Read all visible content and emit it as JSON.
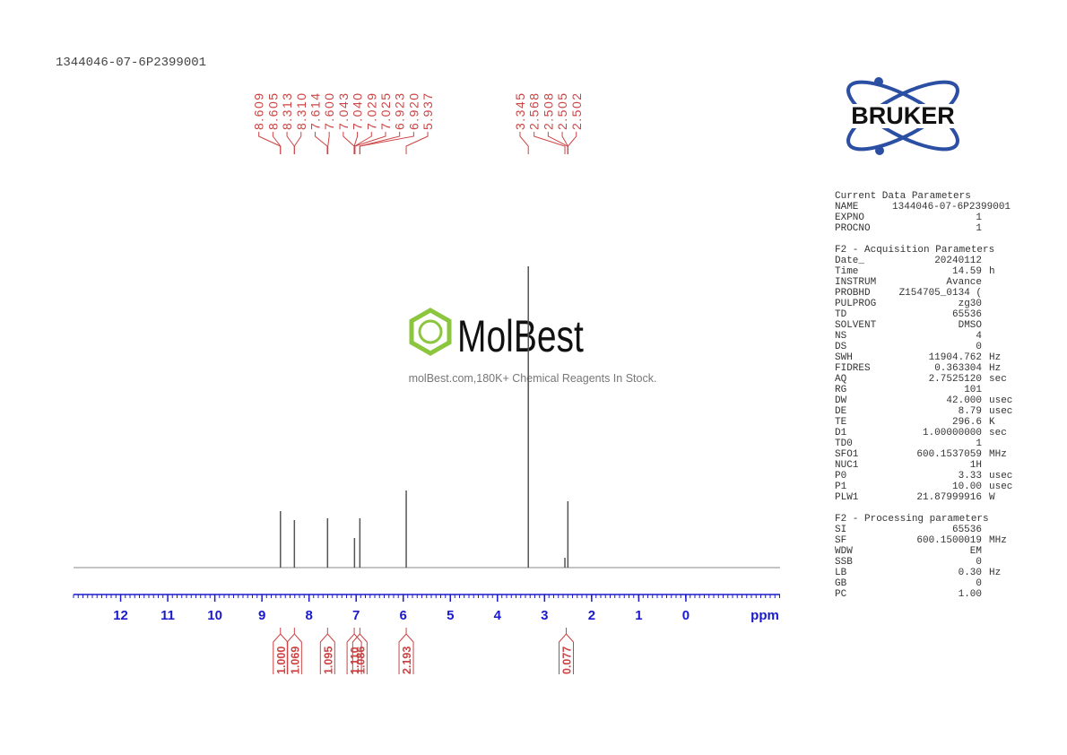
{
  "header": {
    "sample": "1344046-07-6P2399001"
  },
  "logo": {
    "text": "BRUKER"
  },
  "watermark": {
    "brand": "MolBest",
    "tagline": "molBest.com,180K+ Chemical Reagents In Stock."
  },
  "chart_data": {
    "type": "spectrum",
    "x_label": "ppm",
    "xlim": [
      13,
      -2
    ],
    "xticks": [
      12,
      11,
      10,
      9,
      8,
      7,
      6,
      5,
      4,
      3,
      2,
      1,
      0
    ],
    "ylim": [
      0,
      340
    ],
    "signals": {
      "x": [
        8.607,
        8.311,
        7.607,
        7.035,
        6.921,
        5.937,
        3.345,
        2.568,
        2.505
      ],
      "heights": [
        63,
        53,
        55,
        33,
        55,
        86,
        336,
        11,
        74
      ]
    },
    "peak_picks": {
      "values": [
        8.609,
        8.605,
        8.313,
        8.31,
        7.614,
        7.6,
        7.043,
        7.04,
        7.029,
        7.025,
        6.923,
        6.92,
        5.937,
        3.345,
        2.568,
        2.508,
        2.505,
        2.502
      ],
      "value_labels": [
        "8.609",
        "8.605",
        "8.313",
        "8.310",
        "7.614",
        "7.600",
        "7.043",
        "7.040",
        "7.029",
        "7.025",
        "6.923",
        "6.920",
        "5.937",
        "3.345",
        "2.568",
        "2.508",
        "2.505",
        "2.502"
      ]
    },
    "integrals": {
      "x": [
        8.607,
        8.311,
        7.607,
        7.04,
        6.921,
        5.937,
        2.54
      ],
      "values": [
        1,
        1.069,
        1.095,
        1.11,
        1.086,
        2.193,
        0.077
      ],
      "value_labels": [
        "1.000",
        "1.069",
        "1.095",
        "1.110",
        "1.086",
        "2.193",
        "0.077"
      ]
    }
  },
  "parameters": [
    {
      "title": "Current Data Parameters",
      "rows": [
        {
          "key": "NAME",
          "value": "1344046-07-6P2399001"
        },
        {
          "key": "EXPNO",
          "value": "1"
        },
        {
          "key": "PROCNO",
          "value": "1"
        }
      ]
    },
    {
      "title": "F2 - Acquisition Parameters",
      "rows": [
        {
          "key": "Date_",
          "value": "20240112"
        },
        {
          "key": "Time",
          "value": "14.59",
          "unit": "h"
        },
        {
          "key": "INSTRUM",
          "value": "Avance"
        },
        {
          "key": "PROBHD",
          "value": "Z154705_0134 ("
        },
        {
          "key": "PULPROG",
          "value": "zg30"
        },
        {
          "key": "TD",
          "value": "65536"
        },
        {
          "key": "SOLVENT",
          "value": "DMSO"
        },
        {
          "key": "NS",
          "value": "4"
        },
        {
          "key": "DS",
          "value": "0"
        },
        {
          "key": "SWH",
          "value": "11904.762",
          "unit": "Hz"
        },
        {
          "key": "FIDRES",
          "value": "0.363304",
          "unit": "Hz"
        },
        {
          "key": "AQ",
          "value": "2.7525120",
          "unit": "sec"
        },
        {
          "key": "RG",
          "value": "101"
        },
        {
          "key": "DW",
          "value": "42.000",
          "unit": "usec"
        },
        {
          "key": "DE",
          "value": "8.79",
          "unit": "usec"
        },
        {
          "key": "TE",
          "value": "296.6",
          "unit": "K"
        },
        {
          "key": "D1",
          "value": "1.00000000",
          "unit": "sec"
        },
        {
          "key": "TD0",
          "value": "1"
        },
        {
          "key": "SFO1",
          "value": "600.1537059",
          "unit": "MHz"
        },
        {
          "key": "NUC1",
          "value": "1H"
        },
        {
          "key": "P0",
          "value": "3.33",
          "unit": "usec"
        },
        {
          "key": "P1",
          "value": "10.00",
          "unit": "usec"
        },
        {
          "key": "PLW1",
          "value": "21.87999916",
          "unit": "W"
        }
      ]
    },
    {
      "title": "F2 - Processing parameters",
      "rows": [
        {
          "key": "SI",
          "value": "65536"
        },
        {
          "key": "SF",
          "value": "600.1500019",
          "unit": "MHz"
        },
        {
          "key": "WDW",
          "value": "EM"
        },
        {
          "key": "SSB",
          "value": "0"
        },
        {
          "key": "LB",
          "value": "0.30",
          "unit": "Hz"
        },
        {
          "key": "GB",
          "value": "0"
        },
        {
          "key": "PC",
          "value": "1.00"
        }
      ]
    }
  ]
}
